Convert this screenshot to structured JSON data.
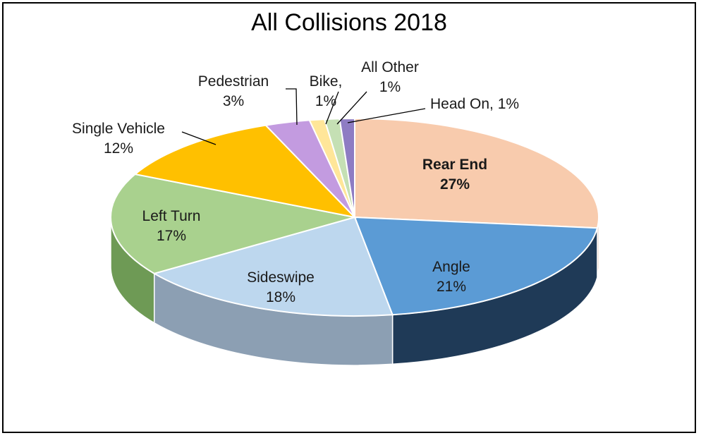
{
  "chart_data": {
    "type": "pie",
    "title": "All Collisions 2018",
    "three_d": true,
    "slices": [
      {
        "name": "Rear End",
        "value": 27,
        "label_lines": [
          "Rear End",
          "27%"
        ],
        "bold": true,
        "color": "#F8CBAD",
        "side_color": "#C9987A"
      },
      {
        "name": "Angle",
        "value": 21,
        "label_lines": [
          "Angle",
          "21%"
        ],
        "bold": false,
        "color": "#5B9BD5",
        "side_color": "#1F3A57"
      },
      {
        "name": "Sideswipe",
        "value": 18,
        "label_lines": [
          "Sideswipe",
          "18%"
        ],
        "bold": false,
        "color": "#BDD7EE",
        "side_color": "#8C9FB3"
      },
      {
        "name": "Left Turn",
        "value": 17,
        "label_lines": [
          "Left Turn",
          "17%"
        ],
        "bold": false,
        "color": "#A9D18E",
        "side_color": "#6E9A55"
      },
      {
        "name": "Single Vehicle",
        "value": 12,
        "label_lines": [
          "Single Vehicle",
          "12%"
        ],
        "bold": false,
        "color": "#FFC000",
        "side_color": "#B88A00"
      },
      {
        "name": "Pedestrian",
        "value": 3,
        "label_lines": [
          "Pedestrian",
          "3%"
        ],
        "bold": false,
        "color": "#C39BE0",
        "side_color": "#8D6BA8"
      },
      {
        "name": "Bike",
        "value": 1,
        "label_lines": [
          "Bike,",
          "1%"
        ],
        "bold": false,
        "color": "#FFE699",
        "side_color": "#BFA960"
      },
      {
        "name": "All Other",
        "value": 1,
        "label_lines": [
          "All Other",
          "1%"
        ],
        "bold": false,
        "color": "#C5E0B4",
        "side_color": "#8CA67D"
      },
      {
        "name": "Head On",
        "value": 1,
        "label_lines": [
          "Head On, 1%"
        ],
        "bold": false,
        "color": "#8E7CC3",
        "side_color": "#5E4F8C"
      }
    ]
  }
}
